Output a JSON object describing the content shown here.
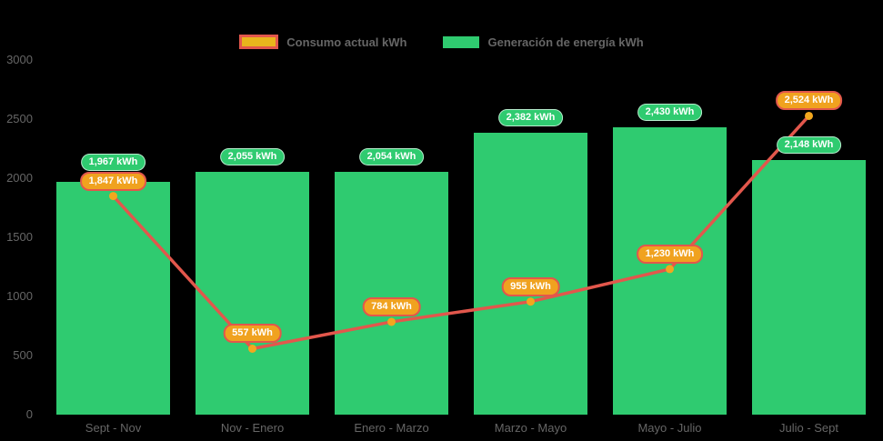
{
  "background": "#000000",
  "text_color": "#666666",
  "legend": {
    "items": [
      {
        "id": "consumo",
        "label": "Consumo actual kWh",
        "swatch_fill": "#E8B51C",
        "swatch_border": "#E2574C"
      },
      {
        "id": "generacion",
        "label": "Generación de energía kWh",
        "swatch_fill": "#2FCB70",
        "swatch_border": ""
      }
    ]
  },
  "chart_data": {
    "type": "combo",
    "categories": [
      "Sept - Nov",
      "Nov - Enero",
      "Enero - Marzo",
      "Marzo - Mayo",
      "Mayo - Julio",
      "Julio - Sept"
    ],
    "series": [
      {
        "name": "Generación de energía kWh",
        "type": "bar",
        "color": "#2FCB70",
        "values": [
          1967,
          2055,
          2054,
          2382,
          2430,
          2148
        ],
        "labels": [
          "1,967 kWh",
          "2,055 kWh",
          "2,054 kWh",
          "2,382 kWh",
          "2,430 kWh",
          "2,148 kWh"
        ],
        "label_style": {
          "fill": "#2FCB70",
          "border": "rgba(255,255,255,0.65)",
          "text": "#FFFFFF"
        }
      },
      {
        "name": "Consumo actual kWh",
        "type": "line",
        "color": "#E2574C",
        "marker_color": "#F2A71E",
        "values": [
          1847,
          557,
          784,
          955,
          1230,
          2524
        ],
        "labels": [
          "1,847 kWh",
          "557 kWh",
          "784 kWh",
          "955 kWh",
          "1,230 kWh",
          "2,524 kWh"
        ],
        "label_style": {
          "fill": "#F0A21F",
          "border": "#E2574C",
          "text": "#FFFFFF"
        }
      }
    ],
    "ylim": [
      0,
      3000
    ],
    "yticks": [
      "0",
      "500",
      "1000",
      "1500",
      "2000",
      "2500",
      "3000"
    ],
    "xlabel": "",
    "ylabel": "",
    "grid": false,
    "legend_position": "top"
  }
}
